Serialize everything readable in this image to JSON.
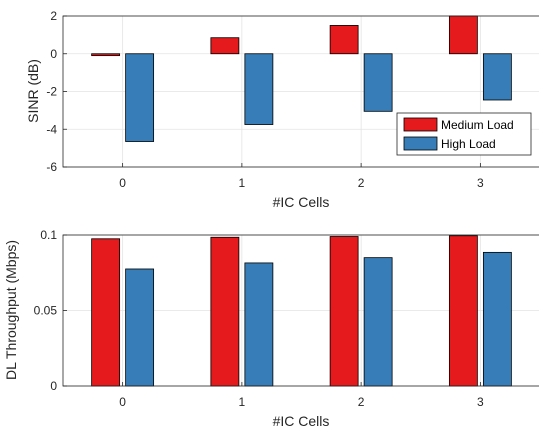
{
  "chart_data": [
    {
      "type": "bar",
      "xlabel": "#IC Cells",
      "ylabel": "SINR (dB)",
      "categories": [
        "0",
        "1",
        "2",
        "3"
      ],
      "ylim": [
        -6,
        2
      ],
      "yticks": [
        "2",
        "0",
        "-2",
        "-4",
        "-6"
      ],
      "grid": true,
      "legend_position": "bottom-right",
      "series": [
        {
          "name": "Medium Load",
          "color": "#e41a1c",
          "values": [
            -0.1,
            0.85,
            1.5,
            2.0
          ]
        },
        {
          "name": "High Load",
          "color": "#377eb8",
          "values": [
            -4.65,
            -3.75,
            -3.05,
            -2.45
          ]
        }
      ]
    },
    {
      "type": "bar",
      "xlabel": "#IC Cells",
      "ylabel": "DL Throughput (Mbps)",
      "categories": [
        "0",
        "1",
        "2",
        "3"
      ],
      "ylim": [
        0,
        0.1
      ],
      "yticks": [
        "0.1",
        "0.05",
        "0"
      ],
      "grid": true,
      "series": [
        {
          "name": "Medium Load",
          "color": "#e41a1c",
          "values": [
            0.0975,
            0.0985,
            0.099,
            0.0995
          ]
        },
        {
          "name": "High Load",
          "color": "#377eb8",
          "values": [
            0.0775,
            0.0815,
            0.085,
            0.0885
          ]
        }
      ]
    }
  ]
}
